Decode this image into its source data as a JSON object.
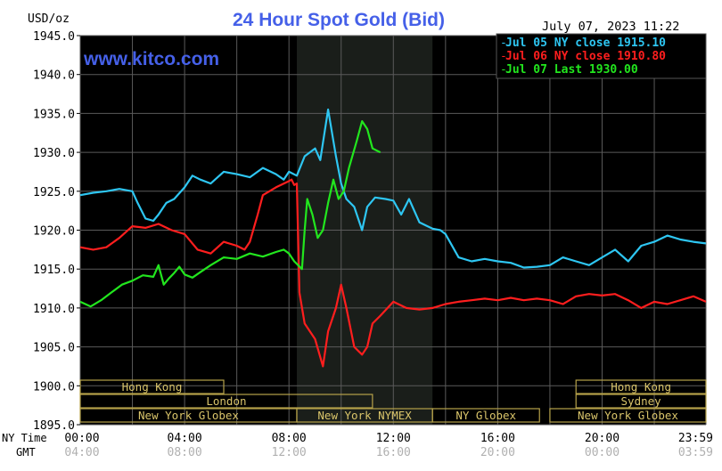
{
  "header": {
    "units": "USD/oz",
    "title": "24 Hour Spot Gold (Bid)",
    "watermark": "www.kitco.com",
    "timestamp": "July 07, 2023 11:22"
  },
  "legend": [
    {
      "label": "Jul 05 NY close 1915.10",
      "color": "#2ec6f2"
    },
    {
      "label": "Jul 06 NY close 1910.80",
      "color": "#ff1e1e"
    },
    {
      "label": "Jul 07 Last 1930.00",
      "color": "#22e61e"
    }
  ],
  "axis_labels": {
    "ny_time": "NY Time",
    "gmt": "GMT",
    "ny_ticks": [
      "00:00",
      "04:00",
      "08:00",
      "12:00",
      "16:00",
      "20:00",
      "23:59"
    ],
    "gmt_ticks": [
      "04:00",
      "08:00",
      "12:00",
      "16:00",
      "20:00",
      "00:00",
      "03:59"
    ],
    "y_ticks": [
      "1945.0",
      "1940.0",
      "1935.0",
      "1930.0",
      "1925.0",
      "1920.0",
      "1915.0",
      "1910.0",
      "1905.0",
      "1900.0",
      "1895.0"
    ]
  },
  "sessions": [
    {
      "label": "Hong Kong",
      "start_hour": 0.0,
      "end_hour": 5.5,
      "row": 1
    },
    {
      "label": "London",
      "start_hour": 0.0,
      "end_hour": 11.2,
      "row": 2
    },
    {
      "label": "New York Globex",
      "start_hour": 0.0,
      "end_hour": 8.3,
      "row": 3
    },
    {
      "label": "New York NYMEX",
      "start_hour": 8.3,
      "end_hour": 13.5,
      "row": 3
    },
    {
      "label": "NY Globex",
      "start_hour": 13.5,
      "end_hour": 17.6,
      "row": 3
    },
    {
      "label": "Hong Kong",
      "start_hour": 19.0,
      "end_hour": 23.98,
      "row": 1
    },
    {
      "label": "Sydney",
      "start_hour": 19.0,
      "end_hour": 23.98,
      "row": 2
    },
    {
      "label": "New York Globex",
      "start_hour": 18.0,
      "end_hour": 23.98,
      "row": 3
    }
  ],
  "chart_data": {
    "type": "line",
    "title": "24 Hour Spot Gold (Bid)",
    "ylabel": "USD/oz",
    "xlabel": "NY Time",
    "xlim": [
      0,
      23.98
    ],
    "ylim": [
      1895.0,
      1945.0
    ],
    "highlight_range_hours": [
      8.3,
      13.5
    ],
    "grid": true,
    "legend_position": "top-right",
    "series": [
      {
        "name": "Jul 05 NY close 1915.10",
        "color": "#2ec6f2",
        "x": [
          0,
          0.5,
          1.0,
          1.5,
          2.0,
          2.2,
          2.5,
          2.8,
          3.0,
          3.3,
          3.6,
          4.0,
          4.3,
          4.6,
          5.0,
          5.5,
          6.0,
          6.5,
          7.0,
          7.5,
          7.8,
          8.0,
          8.3,
          8.6,
          9.0,
          9.2,
          9.5,
          9.8,
          10.0,
          10.2,
          10.5,
          10.8,
          11.0,
          11.3,
          11.7,
          12.0,
          12.3,
          12.6,
          13.0,
          13.5,
          13.8,
          14.0,
          14.5,
          15.0,
          15.5,
          16.0,
          16.5,
          17.0,
          17.5,
          18.0,
          18.5,
          19.0,
          19.5,
          20.0,
          20.5,
          21.0,
          21.5,
          22.0,
          22.5,
          23.0,
          23.5,
          23.98
        ],
        "y": [
          1924.5,
          1924.8,
          1925.0,
          1925.3,
          1925.0,
          1923.5,
          1921.5,
          1921.2,
          1922.0,
          1923.5,
          1924.0,
          1925.5,
          1927.0,
          1926.5,
          1926.0,
          1927.5,
          1927.2,
          1926.8,
          1928.0,
          1927.2,
          1926.5,
          1927.5,
          1927.0,
          1929.5,
          1930.5,
          1929.0,
          1935.5,
          1929.5,
          1926.0,
          1924.0,
          1923.0,
          1920.0,
          1923.0,
          1924.2,
          1924.0,
          1923.8,
          1922.0,
          1924.0,
          1921.0,
          1920.2,
          1920.0,
          1919.5,
          1916.5,
          1916.0,
          1916.3,
          1916.0,
          1915.8,
          1915.2,
          1915.3,
          1915.5,
          1916.5,
          1916.0,
          1915.5,
          1916.5,
          1917.5,
          1916.0,
          1918.0,
          1918.5,
          1919.3,
          1918.8,
          1918.5,
          1918.3
        ]
      },
      {
        "name": "Jul 06 NY close 1910.80",
        "color": "#ff1e1e",
        "x": [
          0,
          0.5,
          1.0,
          1.5,
          2.0,
          2.5,
          3.0,
          3.5,
          4.0,
          4.5,
          5.0,
          5.5,
          6.0,
          6.3,
          6.5,
          6.8,
          7.0,
          7.5,
          8.0,
          8.1,
          8.2,
          8.3,
          8.4,
          8.6,
          9.0,
          9.3,
          9.5,
          9.8,
          10.0,
          10.2,
          10.5,
          10.8,
          11.0,
          11.2,
          11.5,
          12.0,
          12.5,
          13.0,
          13.5,
          14.0,
          14.5,
          15.0,
          15.5,
          16.0,
          16.5,
          17.0,
          17.5,
          18.0,
          18.5,
          19.0,
          19.5,
          20.0,
          20.5,
          21.0,
          21.5,
          22.0,
          22.5,
          23.0,
          23.5,
          23.98
        ],
        "y": [
          1917.8,
          1917.5,
          1917.8,
          1919.0,
          1920.5,
          1920.3,
          1920.8,
          1920.0,
          1919.5,
          1917.5,
          1917.0,
          1918.5,
          1918.0,
          1917.5,
          1918.5,
          1922.0,
          1924.5,
          1925.5,
          1926.3,
          1926.5,
          1925.8,
          1926.0,
          1912.0,
          1908.0,
          1906.0,
          1902.5,
          1907.0,
          1910.0,
          1913.0,
          1910.0,
          1905.0,
          1904.0,
          1905.0,
          1908.0,
          1909.0,
          1910.8,
          1910.0,
          1909.8,
          1910.0,
          1910.5,
          1910.8,
          1911.0,
          1911.2,
          1911.0,
          1911.3,
          1911.0,
          1911.2,
          1911.0,
          1910.5,
          1911.5,
          1911.8,
          1911.6,
          1911.8,
          1911.0,
          1910.0,
          1910.8,
          1910.5,
          1911.0,
          1911.5,
          1910.8
        ]
      },
      {
        "name": "Jul 07 Last 1930.00",
        "color": "#22e61e",
        "x": [
          0,
          0.4,
          0.8,
          1.2,
          1.6,
          2.0,
          2.4,
          2.8,
          3.0,
          3.2,
          3.4,
          3.6,
          3.8,
          4.0,
          4.3,
          4.6,
          5.0,
          5.5,
          6.0,
          6.5,
          7.0,
          7.5,
          7.8,
          8.0,
          8.2,
          8.5,
          8.6,
          8.7,
          8.9,
          9.1,
          9.3,
          9.5,
          9.7,
          9.9,
          10.1,
          10.3,
          10.6,
          10.8,
          11.0,
          11.2,
          11.5
        ],
        "y": [
          1910.8,
          1910.2,
          1911.0,
          1912.0,
          1913.0,
          1913.5,
          1914.2,
          1914.0,
          1915.5,
          1913.0,
          1913.8,
          1914.5,
          1915.3,
          1914.3,
          1913.9,
          1914.6,
          1915.5,
          1916.5,
          1916.3,
          1917.0,
          1916.6,
          1917.2,
          1917.5,
          1917.0,
          1916.0,
          1915.0,
          1920.0,
          1924.0,
          1922.0,
          1919.0,
          1920.0,
          1923.5,
          1926.5,
          1924.0,
          1925.0,
          1928.0,
          1931.5,
          1934.0,
          1933.0,
          1930.5,
          1930.0
        ]
      }
    ]
  }
}
